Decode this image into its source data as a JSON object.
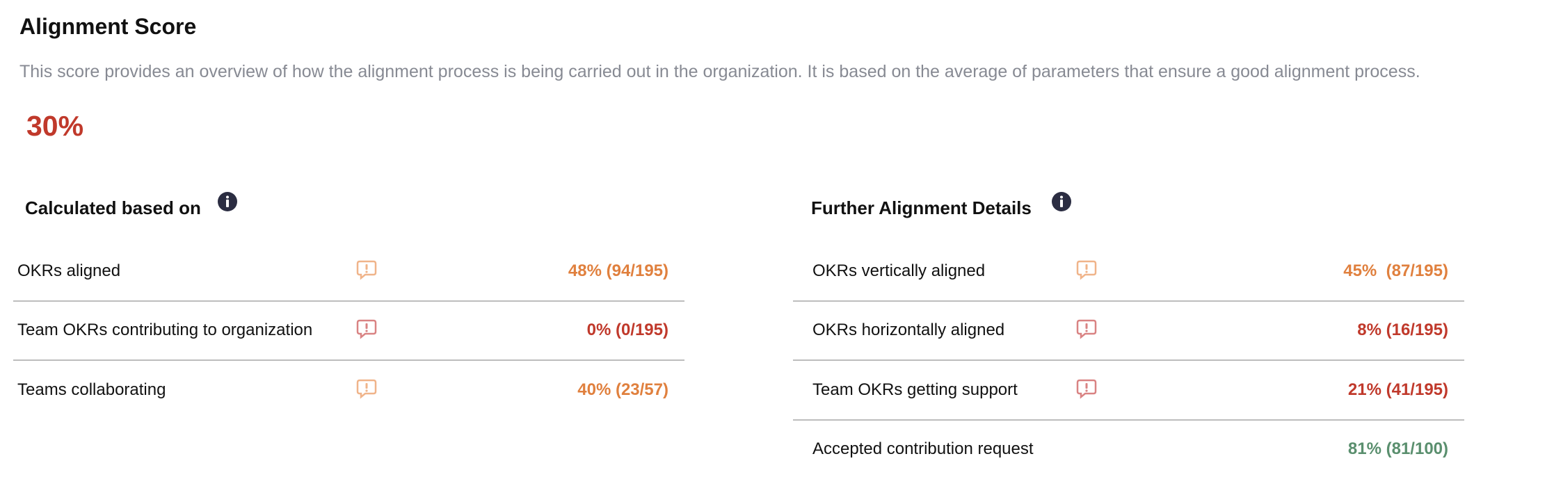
{
  "header": {
    "title": "Alignment Score",
    "description": "This score provides an overview of how the alignment process is being carried out in the organization. It is based on the average of parameters that ensure a good alignment process.",
    "score": "30%",
    "score_color": "#c0392b"
  },
  "sections": [
    {
      "title": "Calculated based on",
      "rows": [
        {
          "label": "OKRs aligned",
          "value": "48% (94/195)",
          "color": "#e0803e",
          "icon_color": "#f0b48a"
        },
        {
          "label": "Team OKRs contributing to organization",
          "value": "0% (0/195)",
          "color": "#c0392b",
          "icon_color": "#d98383"
        },
        {
          "label": "Teams collaborating",
          "value": "40% (23/57)",
          "color": "#e0803e",
          "icon_color": "#f0b48a"
        }
      ]
    },
    {
      "title": "Further Alignment Details",
      "rows": [
        {
          "label": "OKRs vertically aligned",
          "value": "45%  (87/195)",
          "color": "#e0803e",
          "icon_color": "#f0b48a"
        },
        {
          "label": "OKRs horizontally aligned",
          "value": "8% (16/195)",
          "color": "#c0392b",
          "icon_color": "#d98383"
        },
        {
          "label": "Team OKRs getting support",
          "value": "21% (41/195)",
          "color": "#c0392b",
          "icon_color": "#d98383"
        },
        {
          "label": "Accepted contribution request",
          "value": "81% (81/100)",
          "color": "#5a8f6e",
          "icon_color": null
        }
      ]
    }
  ]
}
